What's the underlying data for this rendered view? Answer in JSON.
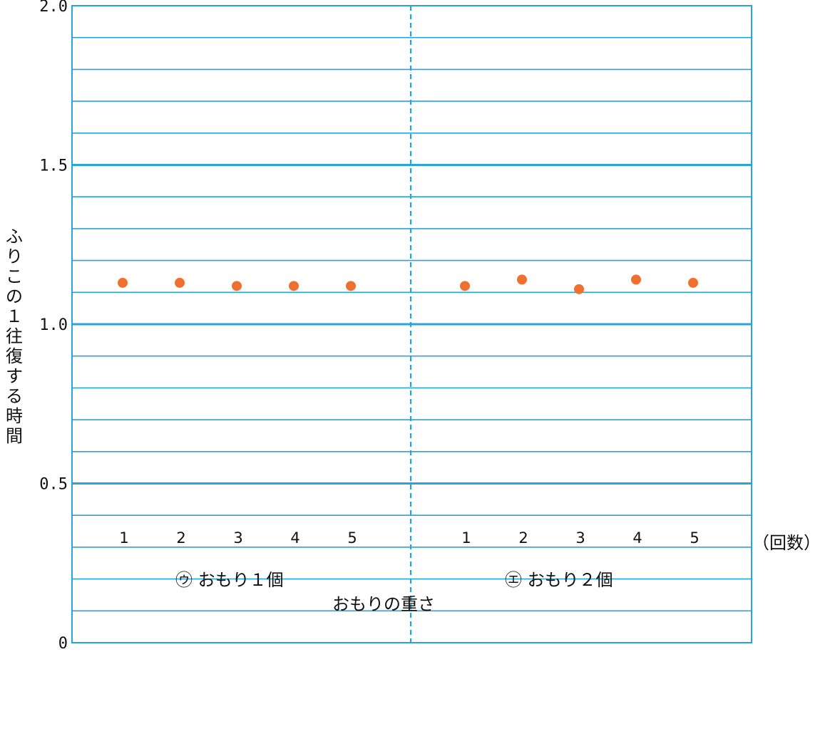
{
  "chart_data": {
    "type": "scatter",
    "ylabel": "ふりこの１往復する時間",
    "xlabel": "おもりの重さ",
    "x_unit": "（回数）",
    "ylim": [
      0,
      2.0
    ],
    "y_ticks": [
      "0",
      "0.5",
      "1.0",
      "1.5",
      "2.0"
    ],
    "grid": true,
    "colors": {
      "grid": "#29a3dc",
      "point": "#f07030"
    },
    "groups": [
      {
        "label": "㋒ おもり１個",
        "categories": [
          "1",
          "2",
          "3",
          "4",
          "5"
        ],
        "values": [
          1.13,
          1.13,
          1.12,
          1.12,
          1.12
        ]
      },
      {
        "label": "㋓ おもり２個",
        "categories": [
          "1",
          "2",
          "3",
          "4",
          "5"
        ],
        "values": [
          1.12,
          1.14,
          1.11,
          1.14,
          1.13
        ]
      }
    ]
  }
}
